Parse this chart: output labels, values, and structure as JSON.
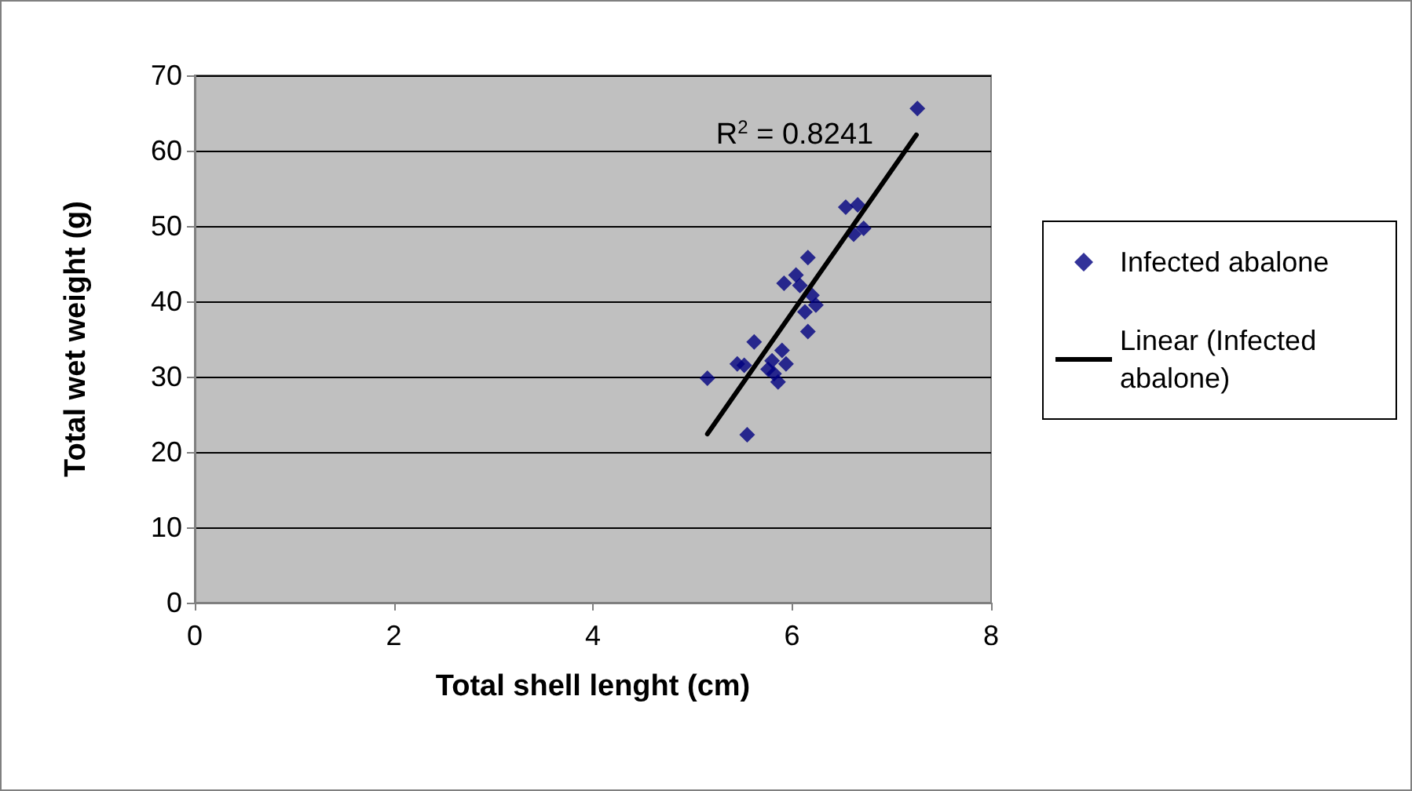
{
  "chart_data": {
    "type": "scatter",
    "xlabel": "Total shell lenght (cm)",
    "ylabel": "Total wet weight (g)",
    "xlim": [
      0,
      8
    ],
    "xticks": [
      0,
      2,
      4,
      6,
      8
    ],
    "ylim": [
      0,
      70
    ],
    "yticks": [
      0,
      10,
      20,
      30,
      40,
      50,
      60,
      70
    ],
    "grid": "y",
    "legend": "right",
    "marker": "diamond",
    "annotations": [
      "R$^{2}$ = 0.8241"
    ],
    "series": [
      {
        "name": "Infected abalone",
        "color": "#000080",
        "x": [
          7.26,
          6.54,
          6.66,
          6.72,
          6.62,
          6.16,
          6.04,
          5.92,
          6.08,
          6.24,
          6.2,
          6.13,
          6.16,
          5.62,
          5.9,
          5.94,
          5.45,
          5.52,
          5.8,
          5.76,
          5.86,
          5.82,
          5.15,
          5.55
        ],
        "values": [
          65.6,
          52.5,
          52.8,
          49.7,
          48.9,
          45.8,
          43.5,
          42.4,
          42.1,
          39.5,
          40.8,
          38.6,
          36.0,
          34.6,
          33.5,
          31.7,
          31.7,
          31.5,
          32.1,
          31.0,
          29.3,
          30.4,
          29.8,
          22.3
        ]
      },
      {
        "name": "Linear (Infected abalone)",
        "type": "line",
        "color": "#000000",
        "line_style": "solid",
        "marker": "none",
        "x": [
          5.15,
          7.25
        ],
        "values": [
          22.4,
          62.1
        ]
      }
    ]
  }
}
